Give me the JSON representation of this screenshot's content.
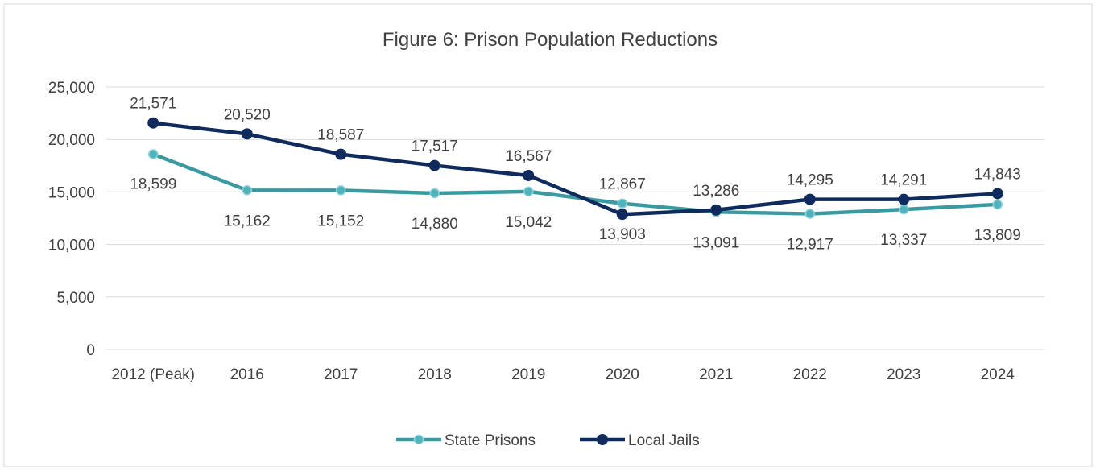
{
  "chart_data": {
    "type": "line",
    "title": "Figure 6: Prison Population Reductions",
    "categories": [
      "2012 (Peak)",
      "2016",
      "2017",
      "2018",
      "2019",
      "2020",
      "2021",
      "2022",
      "2023",
      "2024"
    ],
    "ylim": [
      0,
      25000
    ],
    "yticks": [
      0,
      5000,
      10000,
      15000,
      20000,
      25000
    ],
    "ytick_labels": [
      "0",
      "5,000",
      "10,000",
      "15,000",
      "20,000",
      "25,000"
    ],
    "grid": true,
    "legend_position": "bottom",
    "series": [
      {
        "name": "State Prisons",
        "color": "#3a9aa0",
        "marker_fill": "#4fb3bd",
        "values": [
          18599,
          15162,
          15152,
          14880,
          15042,
          13903,
          13091,
          12917,
          13337,
          13809
        ],
        "labels": [
          "18,599",
          "15,162",
          "15,152",
          "14,880",
          "15,042",
          "13,903",
          "13,091",
          "12,917",
          "13,337",
          "13,809"
        ]
      },
      {
        "name": "Local Jails",
        "color": "#0f2a5c",
        "marker_fill": "#0f2a5c",
        "values": [
          21571,
          20520,
          18587,
          17517,
          16567,
          12867,
          13286,
          14295,
          14291,
          14843
        ],
        "labels": [
          "21,571",
          "20,520",
          "18,587",
          "17,517",
          "16,567",
          "12,867",
          "13,286",
          "14,295",
          "14,291",
          "14,843"
        ]
      }
    ]
  }
}
